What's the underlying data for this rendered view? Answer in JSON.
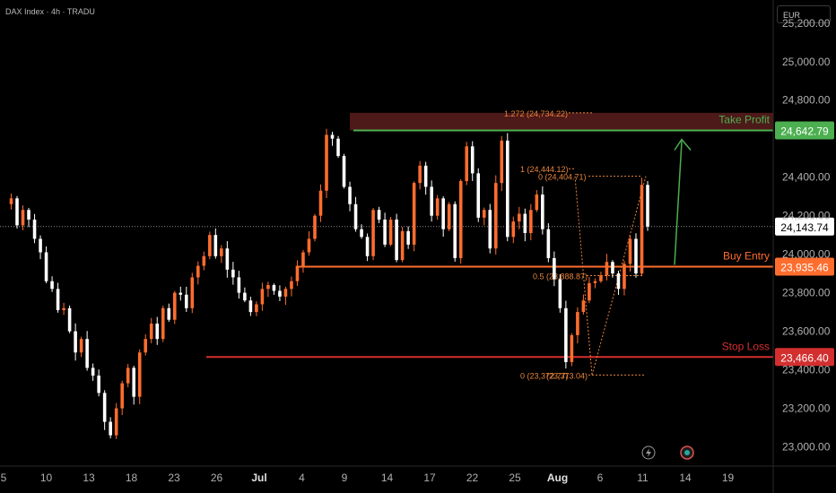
{
  "header": {
    "symbol_title": "DAX Index · 4h · TRADU",
    "currency": "EUR"
  },
  "chart_data": {
    "type": "candlestick",
    "title": "DAX Index · 4h · TRADU",
    "currency": "EUR",
    "ylim": [
      22900,
      25320
    ],
    "y_ticks": [
      {
        "value": 25200,
        "label": "25,200.00"
      },
      {
        "value": 25000,
        "label": "25,000.00"
      },
      {
        "value": 24800,
        "label": "24,800.00"
      },
      {
        "value": 24400,
        "label": "24,400.00"
      },
      {
        "value": 24200,
        "label": "24,200.00"
      },
      {
        "value": 24000,
        "label": "24,000.00"
      },
      {
        "value": 23800,
        "label": "23,800.00"
      },
      {
        "value": 23600,
        "label": "23,600.00"
      },
      {
        "value": 23400,
        "label": "23,400.00"
      },
      {
        "value": 23200,
        "label": "23,200.00"
      },
      {
        "value": 23000,
        "label": "23,000.00"
      }
    ],
    "x_ticks": [
      {
        "label": "5",
        "bold": false
      },
      {
        "label": "10",
        "bold": false
      },
      {
        "label": "13",
        "bold": false
      },
      {
        "label": "18",
        "bold": false
      },
      {
        "label": "23",
        "bold": false
      },
      {
        "label": "26",
        "bold": false
      },
      {
        "label": "Jul",
        "bold": true
      },
      {
        "label": "4",
        "bold": false
      },
      {
        "label": "9",
        "bold": false
      },
      {
        "label": "14",
        "bold": false
      },
      {
        "label": "17",
        "bold": false
      },
      {
        "label": "22",
        "bold": false
      },
      {
        "label": "25",
        "bold": false
      },
      {
        "label": "Aug",
        "bold": true
      },
      {
        "label": "6",
        "bold": false
      },
      {
        "label": "11",
        "bold": false
      },
      {
        "label": "14",
        "bold": false
      },
      {
        "label": "19",
        "bold": false
      }
    ],
    "close_path": [
      24260,
      24290,
      24150,
      24230,
      24180,
      24080,
      24010,
      23860,
      23820,
      23710,
      23720,
      23600,
      23490,
      23560,
      23410,
      23370,
      23280,
      23130,
      23060,
      23200,
      23330,
      23410,
      23260,
      23490,
      23560,
      23640,
      23560,
      23720,
      23660,
      23800,
      23790,
      23720,
      23880,
      23940,
      23990,
      24100,
      23990,
      24030,
      23920,
      23880,
      23800,
      23760,
      23700,
      23740,
      23820,
      23840,
      23810,
      23780,
      23820,
      23860,
      23940,
      24010,
      24080,
      24200,
      24330,
      24620,
      24600,
      24510,
      24350,
      24260,
      24130,
      24090,
      23990,
      24230,
      24180,
      24050,
      24180,
      23970,
      24120,
      24050,
      24370,
      24460,
      24350,
      24200,
      24290,
      24130,
      24260,
      23980,
      24380,
      24560,
      24420,
      24190,
      24230,
      24030,
      24370,
      24590,
      24090,
      24170,
      24210,
      24110,
      24230,
      24310,
      24130,
      23980,
      23870,
      23720,
      23440,
      23580,
      23700,
      23760,
      23850,
      23860,
      23890,
      23960,
      23900,
      23820,
      23950,
      24080,
      23900,
      24360,
      24143.74
    ],
    "current_price": {
      "value": 24143.74,
      "label": "24,143.74"
    },
    "levels": [
      {
        "name": "Take Profit",
        "value": 24642.79,
        "label": "24,642.79",
        "color": "#4caf50"
      },
      {
        "name": "Buy Entry",
        "value": 23935.46,
        "label": "23,935.46",
        "color": "#ff6d2e"
      },
      {
        "name": "Stop Loss",
        "value": 23466.4,
        "label": "23,466.40",
        "color": "#d32f2f"
      }
    ],
    "take_profit_zone": {
      "from": 24642.79,
      "to": 24734.22
    },
    "fib_labels": [
      {
        "text": "1.272 (24,734.22)",
        "value": 24734.22
      },
      {
        "text": "1 (24,444.12)",
        "value": 24444.12
      },
      {
        "text": "0 (24,404.71)",
        "value": 24404.71
      },
      {
        "text": "0.5 (23,888.87)",
        "value": 23888.87
      },
      {
        "text": "0 (23,372.77)",
        "value": 23372.77
      },
      {
        "text": "(23,373.04)",
        "value": 23373.04
      }
    ],
    "colors": {
      "up": "#ff6d2e",
      "down": "#ffffff",
      "background": "#000000",
      "fib": "#e8843a",
      "target_arrow": "#4caf50"
    }
  }
}
